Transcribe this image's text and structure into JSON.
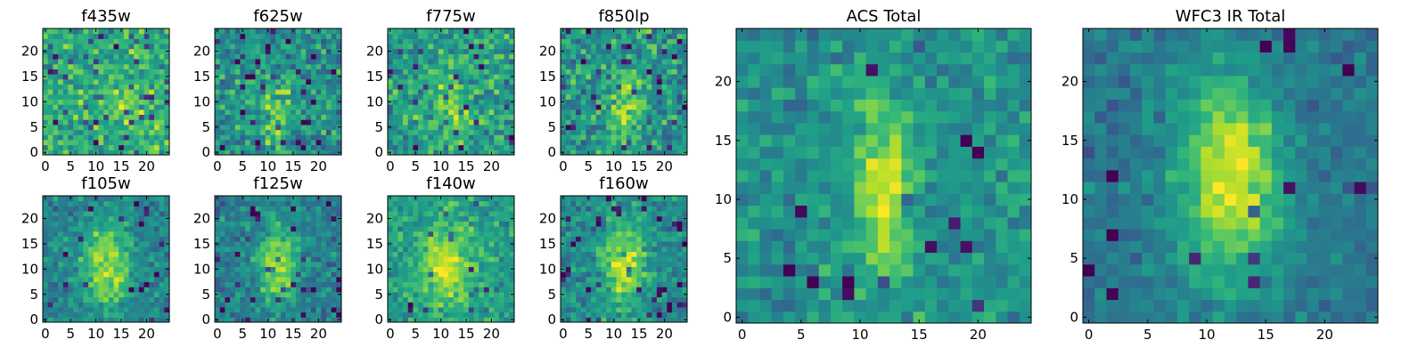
{
  "figure": {
    "colormap": "viridis",
    "colormap_stops": [
      "#440154",
      "#482878",
      "#3e4989",
      "#31688e",
      "#26828e",
      "#1f9e89",
      "#35b779",
      "#6ece58",
      "#b5de2b",
      "#fde725"
    ]
  },
  "chart_data": [
    {
      "type": "heatmap",
      "title": "f435w",
      "grid_size": 25,
      "xlim": [
        0,
        24
      ],
      "ylim": [
        0,
        24
      ],
      "xticks": [
        0,
        5,
        10,
        15,
        20
      ],
      "yticks": [
        0,
        5,
        10,
        15,
        20
      ],
      "source_center": [
        16,
        10
      ],
      "source_strength": 0.18,
      "source_width": 2.5,
      "source_elongation": 1.2,
      "background_level": 0.62,
      "noise_level": 0.22,
      "dark_pixel_rate": 0.07
    },
    {
      "type": "heatmap",
      "title": "f625w",
      "grid_size": 25,
      "xlim": [
        0,
        24
      ],
      "ylim": [
        0,
        24
      ],
      "xticks": [
        0,
        5,
        10,
        15,
        20
      ],
      "yticks": [
        0,
        5,
        10,
        15,
        20
      ],
      "source_center": [
        12,
        8
      ],
      "source_strength": 0.32,
      "source_width": 2.0,
      "source_elongation": 2.2,
      "background_level": 0.5,
      "noise_level": 0.24,
      "dark_pixel_rate": 0.07
    },
    {
      "type": "heatmap",
      "title": "f775w",
      "grid_size": 25,
      "xlim": [
        0,
        24
      ],
      "ylim": [
        0,
        24
      ],
      "xticks": [
        0,
        5,
        10,
        15,
        20
      ],
      "yticks": [
        0,
        5,
        10,
        15,
        20
      ],
      "source_center": [
        12,
        9
      ],
      "source_strength": 0.3,
      "source_width": 2.2,
      "source_elongation": 2.2,
      "background_level": 0.55,
      "noise_level": 0.24,
      "dark_pixel_rate": 0.06
    },
    {
      "type": "heatmap",
      "title": "f850lp",
      "grid_size": 25,
      "xlim": [
        0,
        24
      ],
      "ylim": [
        0,
        24
      ],
      "xticks": [
        0,
        5,
        10,
        15,
        20
      ],
      "yticks": [
        0,
        5,
        10,
        15,
        20
      ],
      "source_center": [
        12,
        9
      ],
      "source_strength": 0.32,
      "source_width": 2.2,
      "source_elongation": 2.4,
      "background_level": 0.52,
      "noise_level": 0.24,
      "dark_pixel_rate": 0.06
    },
    {
      "type": "heatmap",
      "title": "f105w",
      "grid_size": 25,
      "xlim": [
        0,
        24
      ],
      "ylim": [
        0,
        24
      ],
      "xticks": [
        0,
        5,
        10,
        15,
        20
      ],
      "yticks": [
        0,
        5,
        10,
        15,
        20
      ],
      "source_center": [
        12,
        11
      ],
      "source_strength": 0.45,
      "source_width": 3.2,
      "source_elongation": 1.9,
      "background_level": 0.45,
      "noise_level": 0.16,
      "dark_pixel_rate": 0.03
    },
    {
      "type": "heatmap",
      "title": "f125w",
      "grid_size": 25,
      "xlim": [
        0,
        24
      ],
      "ylim": [
        0,
        24
      ],
      "xticks": [
        0,
        5,
        10,
        15,
        20
      ],
      "yticks": [
        0,
        5,
        10,
        15,
        20
      ],
      "source_center": [
        12,
        11
      ],
      "source_strength": 0.45,
      "source_width": 2.8,
      "source_elongation": 2.1,
      "background_level": 0.42,
      "noise_level": 0.17,
      "dark_pixel_rate": 0.04
    },
    {
      "type": "heatmap",
      "title": "f140w",
      "grid_size": 25,
      "xlim": [
        0,
        24
      ],
      "ylim": [
        0,
        24
      ],
      "xticks": [
        0,
        5,
        10,
        15,
        20
      ],
      "yticks": [
        0,
        5,
        10,
        15,
        20
      ],
      "source_center": [
        11,
        11
      ],
      "source_strength": 0.38,
      "source_width": 3.6,
      "source_elongation": 1.6,
      "background_level": 0.55,
      "noise_level": 0.17,
      "dark_pixel_rate": 0.03
    },
    {
      "type": "heatmap",
      "title": "f160w",
      "grid_size": 25,
      "xlim": [
        0,
        24
      ],
      "ylim": [
        0,
        24
      ],
      "xticks": [
        0,
        5,
        10,
        15,
        20
      ],
      "yticks": [
        0,
        5,
        10,
        15,
        20
      ],
      "source_center": [
        12,
        11
      ],
      "source_strength": 0.45,
      "source_width": 2.8,
      "source_elongation": 2.0,
      "background_level": 0.48,
      "noise_level": 0.17,
      "dark_pixel_rate": 0.04
    },
    {
      "type": "heatmap",
      "title": "ACS Total",
      "grid_size": 25,
      "xlim": [
        0,
        24
      ],
      "ylim": [
        0,
        24
      ],
      "xticks": [
        0,
        5,
        10,
        15,
        20
      ],
      "yticks": [
        0,
        5,
        10,
        15,
        20
      ],
      "source_center": [
        12,
        11
      ],
      "source_strength": 0.42,
      "source_width": 1.8,
      "source_elongation": 3.0,
      "background_level": 0.5,
      "noise_level": 0.16,
      "dark_pixel_rate": 0.03
    },
    {
      "type": "heatmap",
      "title": "WFC3 IR Total",
      "grid_size": 25,
      "xlim": [
        0,
        24
      ],
      "ylim": [
        0,
        24
      ],
      "xticks": [
        0,
        5,
        10,
        15,
        20
      ],
      "yticks": [
        0,
        5,
        10,
        15,
        20
      ],
      "source_center": [
        12,
        12
      ],
      "source_strength": 0.55,
      "source_width": 3.0,
      "source_elongation": 2.0,
      "background_level": 0.4,
      "noise_level": 0.12,
      "dark_pixel_rate": 0.02
    }
  ]
}
